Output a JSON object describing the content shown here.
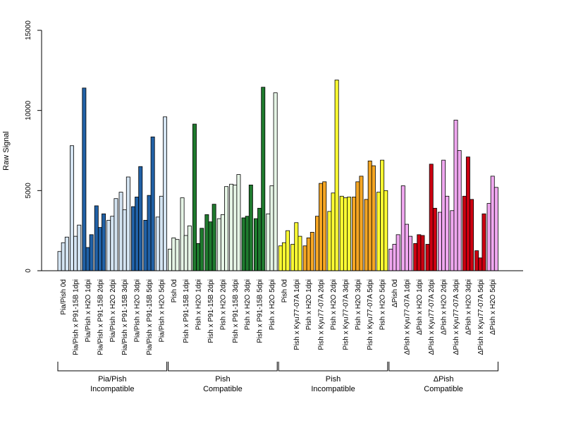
{
  "chart_data": {
    "type": "bar",
    "title": "",
    "xlabel": "",
    "ylabel": "Raw Signal",
    "ylim": [
      0,
      15000
    ],
    "yticks": [
      0,
      5000,
      10000,
      15000
    ],
    "grid": false,
    "legend": "none",
    "series_per_category": 3,
    "categories": [
      "Pia/Pish 0d",
      "Pia/Pish x P91-15B 1dpi",
      "Pia/Pish x H2O 1dpi",
      "Pia/Pish x P91-15B 2dpi",
      "Pia/Pish x H2O 2dpi",
      "Pia/Pish x P91-15B 3dpi",
      "Pia/Pish x H2O 3dpi",
      "Pia/Pish x P91-15B 5dpi",
      "Pia/Pish x H2O 5dpi",
      "Pish 0d",
      "Pish x P91-15B 1dpi",
      "Pish x H2O 1dpi",
      "Pish x P91-15B 2dpi",
      "Pish x H2O 2dpi",
      "Pish x P91-15B 3dpi",
      "Pish x H2O 3dpi",
      "Pish x P91-15B 5dpi",
      "Pish x H2O 5dpi",
      "Pish 0d",
      "Pish x Kyu77-07A 1dpi",
      "Pish x H2O 1dpi",
      "Pish x Kyu77-07A 2dpi",
      "Pish x H2O 2dpi",
      "Pish x Kyu77-07A 3dpi",
      "Pish x H2O 3dpi",
      "Pish x Kyu77-07A 5dpi",
      "Pish x H2O 5dpi",
      "ΔPish 0d",
      "ΔPish x Kyu77-07A 1dpi",
      "ΔPish x H2O 1dpi",
      "ΔPish x Kyu77-07A 2dpi",
      "ΔPish x H2O 2dpi",
      "ΔPish x Kyu77-07A 3dpi",
      "ΔPish x H2O 3dpi",
      "ΔPish x Kyu77-07A 5dpi",
      "ΔPish x H2O 5dpi"
    ],
    "values": [
      [
        1200,
        1750,
        2100
      ],
      [
        7800,
        2150,
        2850
      ],
      [
        11400,
        1450,
        2250
      ],
      [
        4050,
        2700,
        3550
      ],
      [
        3150,
        3400,
        4500
      ],
      [
        4900,
        3800,
        5850
      ],
      [
        4000,
        4600,
        6500
      ],
      [
        3150,
        4700,
        8350
      ],
      [
        3350,
        4650,
        9600
      ],
      [
        1350,
        2050,
        1950
      ],
      [
        4550,
        2200,
        2800
      ],
      [
        9150,
        1700,
        2650
      ],
      [
        3500,
        3050,
        4150
      ],
      [
        3250,
        3500,
        5250
      ],
      [
        5400,
        5350,
        6000
      ],
      [
        3300,
        3400,
        5350
      ],
      [
        3250,
        3900,
        11450
      ],
      [
        3550,
        5300,
        11100
      ],
      [
        1550,
        1750,
        2500
      ],
      [
        1650,
        3000,
        2150
      ],
      [
        1550,
        2050,
        2400
      ],
      [
        3400,
        5450,
        5550
      ],
      [
        3700,
        4850,
        11900
      ],
      [
        4650,
        4550,
        4600
      ],
      [
        4600,
        5550,
        5900
      ],
      [
        4450,
        6850,
        6550
      ],
      [
        4900,
        6900,
        5000
      ],
      [
        1350,
        1650,
        2250
      ],
      [
        5300,
        2900,
        2150
      ],
      [
        1700,
        2250,
        2200
      ],
      [
        1650,
        6650,
        3900
      ],
      [
        3650,
        6900,
        4650
      ],
      [
        3750,
        9400,
        7500
      ],
      [
        4650,
        7100,
        4450
      ],
      [
        1250,
        800,
        3550
      ],
      [
        4200,
        5900,
        5200
      ]
    ],
    "bar_colors": [
      "#d4e4f2",
      "#d4e4f2",
      "#2161a6",
      "#2161a6",
      "#d4e4f2",
      "#d4e4f2",
      "#2161a6",
      "#2161a6",
      "#d4e4f2",
      "#e6f5e6",
      "#e6f5e6",
      "#1f7a2e",
      "#1f7a2e",
      "#e6f5e6",
      "#e6f5e6",
      "#1f7a2e",
      "#1f7a2e",
      "#e6f5e6",
      "#ffff33",
      "#ffff33",
      "#f5a623",
      "#f5a623",
      "#ffff33",
      "#ffff33",
      "#f5a623",
      "#f5a623",
      "#ffff33",
      "#f0a8f0",
      "#f0a8f0",
      "#cc0011",
      "#cc0011",
      "#f0a8f0",
      "#f0a8f0",
      "#cc0011",
      "#cc0011",
      "#f0a8f0"
    ],
    "group_colors": {
      "light_blue": "#d4e4f2",
      "dark_blue": "#2161a6",
      "light_green": "#e6f5e6",
      "dark_green": "#1f7a2e",
      "yellow": "#ffff33",
      "orange": "#f5a623",
      "pink": "#f0a8f0",
      "red": "#cc0011"
    },
    "groups": [
      {
        "line1": "Pia/Pish",
        "line2": "Incompatible",
        "start": 0,
        "end": 8
      },
      {
        "line1": "Pish",
        "line2": "Compatible",
        "start": 9,
        "end": 17
      },
      {
        "line1": "Pish",
        "line2": "Incompatible",
        "start": 18,
        "end": 26
      },
      {
        "line1": "ΔPish",
        "line2": "Compatible",
        "start": 27,
        "end": 35
      }
    ]
  }
}
